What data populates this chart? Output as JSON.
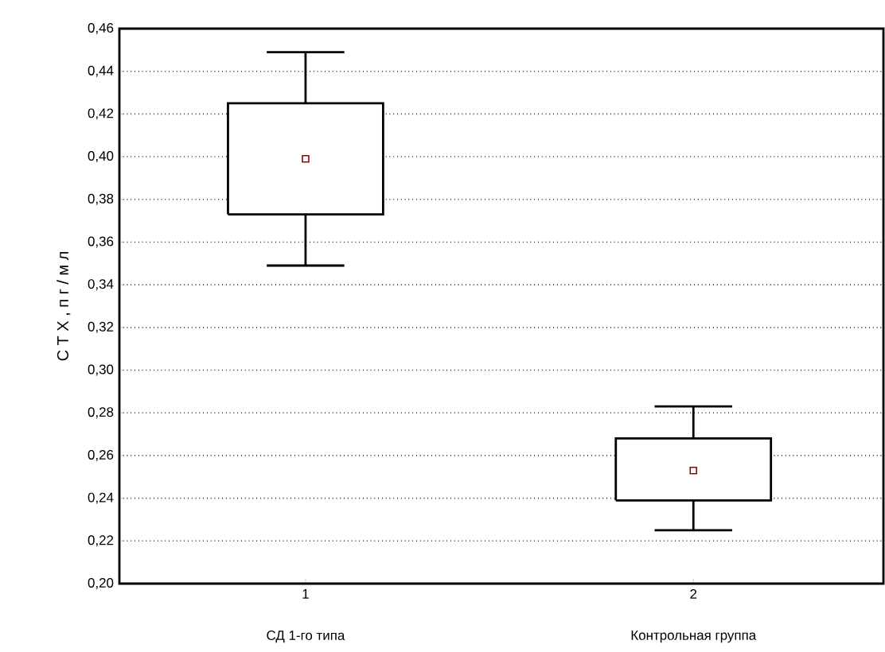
{
  "chart_data": {
    "type": "box",
    "ylabel": "С Т Х , п г / м л",
    "categories": [
      "1",
      "2"
    ],
    "annotations": [
      "СД 1-го типа",
      "Контрольная группа"
    ],
    "boxes": [
      {
        "low": 0.349,
        "q1": 0.373,
        "median": 0.399,
        "q3": 0.425,
        "high": 0.449
      },
      {
        "low": 0.225,
        "q1": 0.239,
        "median": 0.253,
        "q3": 0.268,
        "high": 0.283
      }
    ],
    "color": "#000000",
    "marker": "square",
    "ylim": [
      0.2,
      0.46
    ],
    "yticks": [
      {
        "value": 0.2,
        "label": "0,20"
      },
      {
        "value": 0.22,
        "label": "0,22"
      },
      {
        "value": 0.24,
        "label": "0,24"
      },
      {
        "value": 0.26,
        "label": "0,26"
      },
      {
        "value": 0.28,
        "label": "0,28"
      },
      {
        "value": 0.3,
        "label": "0,30"
      },
      {
        "value": 0.32,
        "label": "0,32"
      },
      {
        "value": 0.34,
        "label": "0,34"
      },
      {
        "value": 0.36,
        "label": "0,36"
      },
      {
        "value": 0.38,
        "label": "0,38"
      },
      {
        "value": 0.4,
        "label": "0,40"
      },
      {
        "value": 0.42,
        "label": "0,42"
      },
      {
        "value": 0.44,
        "label": "0,44"
      },
      {
        "value": 0.46,
        "label": "0,46"
      }
    ],
    "grid": "y"
  }
}
